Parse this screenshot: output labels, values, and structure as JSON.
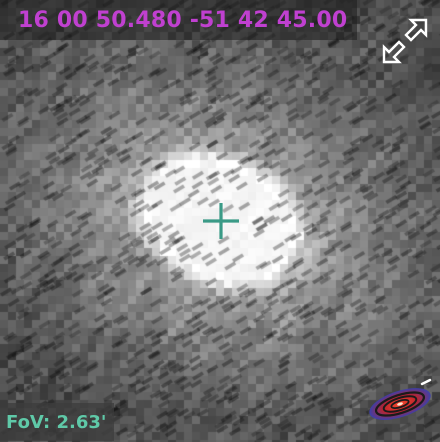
{
  "viewer": {
    "coordinates": "16 00 50.480 -51 42 45.00",
    "fov_label": "FoV: 2.63'",
    "coordinates_color": "#c040d0",
    "fov_color": "#5fc9a8",
    "reticle_color": "#3a9a86"
  },
  "icons": {
    "fullscreen": "expand-arrows-icon",
    "reticle": "crosshair-icon",
    "logo": "spiral-galaxy-logo-icon"
  }
}
